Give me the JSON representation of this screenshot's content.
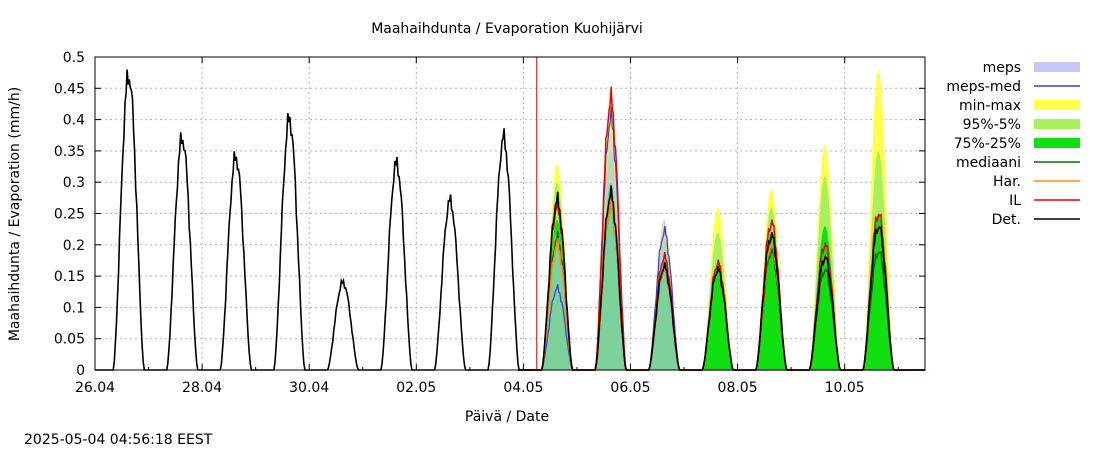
{
  "chart_data": {
    "type": "area",
    "title": "Maahaihdunta / Evaporation  Kuohijärvi",
    "xlabel": "Päivä / Date",
    "ylabel": "Maahaihdunta / Evaporation (mm/h)",
    "timestamp": "2025-05-04 04:56:18 EEST",
    "xlim": [
      "2025-04-26",
      "2025-05-11 12:00"
    ],
    "ylim": [
      0,
      0.5
    ],
    "grid": true,
    "legend_position": "right",
    "forecast_start": "2025-05-04 06:00",
    "x_ticks": [
      "26.04",
      "28.04",
      "30.04",
      "02.05",
      "04.05",
      "06.05",
      "08.05",
      "10.05"
    ],
    "y_ticks": [
      "0",
      "0.05",
      "0.1",
      "0.15",
      "0.2",
      "0.25",
      "0.3",
      "0.35",
      "0.4",
      "0.45",
      "0.5"
    ],
    "legend": [
      {
        "label": "meps",
        "kind": "band",
        "color": "#c6c6f8"
      },
      {
        "label": "meps-med",
        "kind": "line",
        "color": "#3a3ad8"
      },
      {
        "label": "min-max",
        "kind": "band",
        "color": "#ffff4a"
      },
      {
        "label": "95%-5%",
        "kind": "band",
        "color": "#a8f060"
      },
      {
        "label": "75%-25%",
        "kind": "band",
        "color": "#10e010"
      },
      {
        "label": "mediaani",
        "kind": "line",
        "color": "#007000"
      },
      {
        "label": "Har.",
        "kind": "line",
        "color": "#ff8c00"
      },
      {
        "label": "IL",
        "kind": "line",
        "color": "#ee0000"
      },
      {
        "label": "Det.",
        "kind": "line",
        "color": "#000000"
      }
    ],
    "observed_daily_peaks": [
      {
        "date": "2025-04-26",
        "value": 0.47
      },
      {
        "date": "2025-04-27",
        "value": 0.37
      },
      {
        "date": "2025-04-28",
        "value": 0.34
      },
      {
        "date": "2025-04-29",
        "value": 0.4
      },
      {
        "date": "2025-04-30",
        "value": 0.14
      },
      {
        "date": "2025-05-01",
        "value": 0.33
      },
      {
        "date": "2025-05-02",
        "value": 0.27
      },
      {
        "date": "2025-05-03",
        "value": 0.37
      }
    ],
    "forecast_daily_peaks": [
      {
        "date": "2025-05-04",
        "min_max": 0.33,
        "p95_5": 0.3,
        "p75_25": 0.24,
        "mediaani": 0.21,
        "har": 0.2,
        "il": 0.26,
        "det": 0.27,
        "meps": 0.22,
        "meps_med": 0.13
      },
      {
        "date": "2025-05-05",
        "min_max": 0.44,
        "p95_5": 0.35,
        "p75_25": 0.3,
        "mediaani": 0.26,
        "har": 0.26,
        "il": 0.43,
        "det": 0.28,
        "meps": 0.38,
        "meps_med": 0.4
      },
      {
        "date": "2025-05-06",
        "min_max": 0.24,
        "p95_5": 0.21,
        "p75_25": 0.18,
        "mediaani": 0.16,
        "har": 0.16,
        "il": 0.18,
        "det": 0.165,
        "meps": 0.24,
        "meps_med": 0.22
      },
      {
        "date": "2025-05-07",
        "min_max": 0.26,
        "p95_5": 0.22,
        "p75_25": 0.17,
        "mediaani": 0.16,
        "har": 0.16,
        "il": 0.17,
        "det": 0.16
      },
      {
        "date": "2025-05-08",
        "min_max": 0.29,
        "p95_5": 0.26,
        "p75_25": 0.22,
        "mediaani": 0.19,
        "har": 0.2,
        "il": 0.235,
        "det": 0.215
      },
      {
        "date": "2025-05-09",
        "min_max": 0.36,
        "p95_5": 0.31,
        "p75_25": 0.23,
        "mediaani": 0.16,
        "har": 0.18,
        "il": 0.2,
        "det": 0.18
      },
      {
        "date": "2025-05-10",
        "min_max": 0.48,
        "p95_5": 0.35,
        "p75_25": 0.25,
        "mediaani": 0.19,
        "har": 0.23,
        "il": 0.25,
        "det": 0.23
      }
    ]
  },
  "colors": {
    "grid": "#b4b4b4",
    "forecast_line": "#d00000"
  }
}
